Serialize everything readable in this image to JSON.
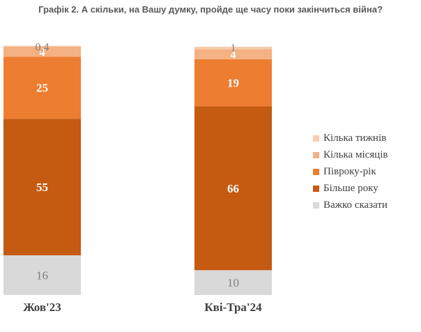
{
  "chart_data": {
    "type": "bar",
    "stacked": true,
    "title": "Графік 2. А скільки, на Вашу думку, пройде ще часу поки закінчиться війна?",
    "categories": [
      "Жов'23",
      "Кві-Тра'24"
    ],
    "ylim": [
      0,
      100
    ],
    "legend_position": "right",
    "grid": false,
    "series": [
      {
        "name": "Важко сказати",
        "color": "#d9d9d9",
        "label_color": "#7f7f7f",
        "values": [
          16,
          10
        ],
        "labels": [
          "16",
          "10"
        ]
      },
      {
        "name": "Більше року",
        "color": "#c55a11",
        "label_color": "#ffffff",
        "values": [
          55,
          66
        ],
        "labels": [
          "55",
          "66"
        ]
      },
      {
        "name": "Півроку-рік",
        "color": "#ed7d31",
        "label_color": "#ffffff",
        "values": [
          25,
          19
        ],
        "labels": [
          "25",
          "19"
        ]
      },
      {
        "name": "Кілька місяців",
        "color": "#f4b183",
        "label_color": "#ffffff",
        "values": [
          4,
          4
        ],
        "labels": [
          "4",
          "4"
        ]
      },
      {
        "name": "Кілька тижнів",
        "color": "#f8cbad",
        "label_color": "#7f7f7f",
        "values": [
          0.4,
          1
        ],
        "labels": [
          "0,4",
          "1"
        ]
      }
    ],
    "legend_order": [
      "Кілька тижнів",
      "Кілька місяців",
      "Півроку-рік",
      "Більше року",
      "Важко сказати"
    ]
  }
}
